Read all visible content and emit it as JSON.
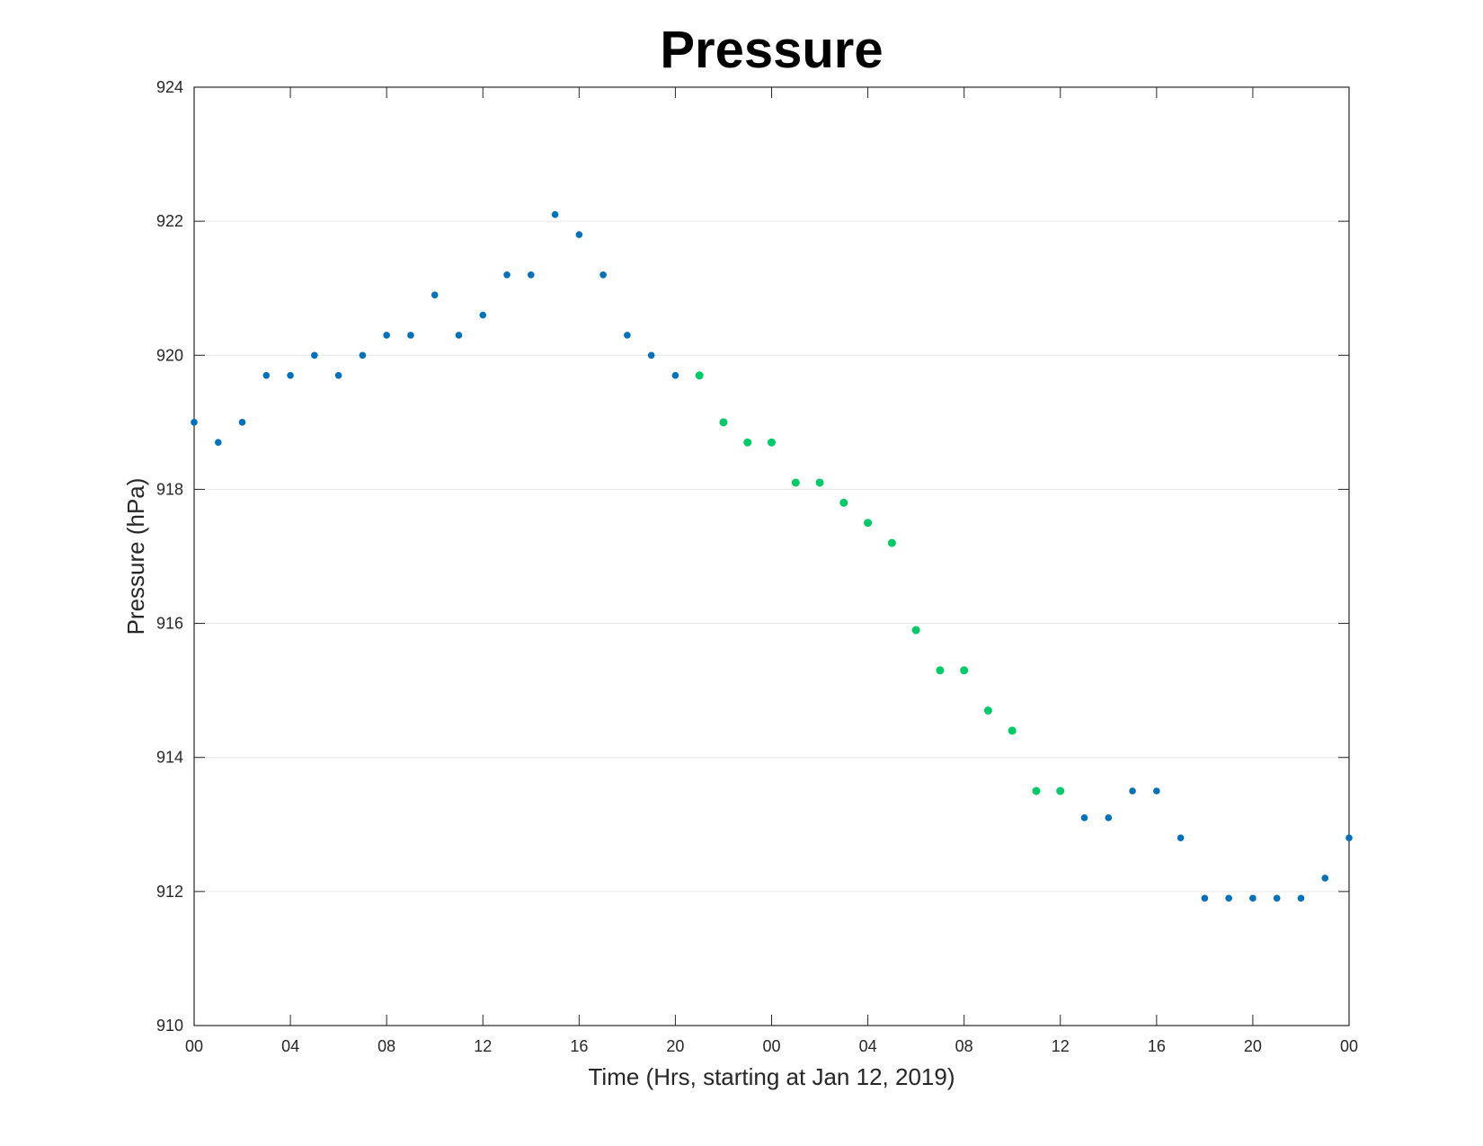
{
  "chart_data": {
    "type": "scatter",
    "title": "Pressure",
    "xlabel": "Time (Hrs, starting at Jan 12, 2019)",
    "ylabel": "Pressure (hPa)",
    "ylim": [
      910,
      924
    ],
    "xlim": [
      0,
      48
    ],
    "grid": "horizontal",
    "x_ticks": [
      {
        "value": 0,
        "label": "00"
      },
      {
        "value": 4,
        "label": "04"
      },
      {
        "value": 8,
        "label": "08"
      },
      {
        "value": 12,
        "label": "12"
      },
      {
        "value": 16,
        "label": "16"
      },
      {
        "value": 20,
        "label": "20"
      },
      {
        "value": 24,
        "label": "00"
      },
      {
        "value": 28,
        "label": "04"
      },
      {
        "value": 32,
        "label": "08"
      },
      {
        "value": 36,
        "label": "12"
      },
      {
        "value": 40,
        "label": "16"
      },
      {
        "value": 44,
        "label": "20"
      },
      {
        "value": 48,
        "label": "00"
      }
    ],
    "y_ticks": [
      910,
      912,
      914,
      916,
      918,
      920,
      922,
      924
    ],
    "colors": {
      "blue": "#0072BD",
      "green": "#00CC66",
      "grid": "#e6e6e6",
      "axis": "#262626"
    },
    "series": [
      {
        "color": "blue",
        "x": [
          0,
          1,
          2,
          3,
          4,
          5,
          6,
          7,
          8,
          9,
          10,
          11,
          12,
          13,
          14,
          15,
          16,
          17,
          18,
          19,
          20
        ],
        "y": [
          919.0,
          918.7,
          919.0,
          919.7,
          919.7,
          920.0,
          919.7,
          920.0,
          920.3,
          920.3,
          920.9,
          920.3,
          920.6,
          921.2,
          921.2,
          922.1,
          921.8,
          921.2,
          920.3,
          920.0,
          919.7
        ]
      },
      {
        "color": "green",
        "x": [
          21,
          22,
          23,
          24,
          25,
          26,
          27,
          28,
          29,
          30,
          31,
          32,
          33,
          34,
          35,
          36
        ],
        "y": [
          919.7,
          919.0,
          918.7,
          918.7,
          918.1,
          918.1,
          917.8,
          917.5,
          917.2,
          915.9,
          915.3,
          915.3,
          914.7,
          914.4,
          913.5,
          913.5
        ]
      },
      {
        "color": "blue",
        "x": [
          37,
          38,
          39,
          40,
          41,
          42,
          43,
          44,
          45,
          46,
          47,
          48
        ],
        "y": [
          913.1,
          913.1,
          913.5,
          913.5,
          912.8,
          911.9,
          911.9,
          911.9,
          911.9,
          911.9,
          912.2,
          912.8
        ]
      }
    ]
  }
}
